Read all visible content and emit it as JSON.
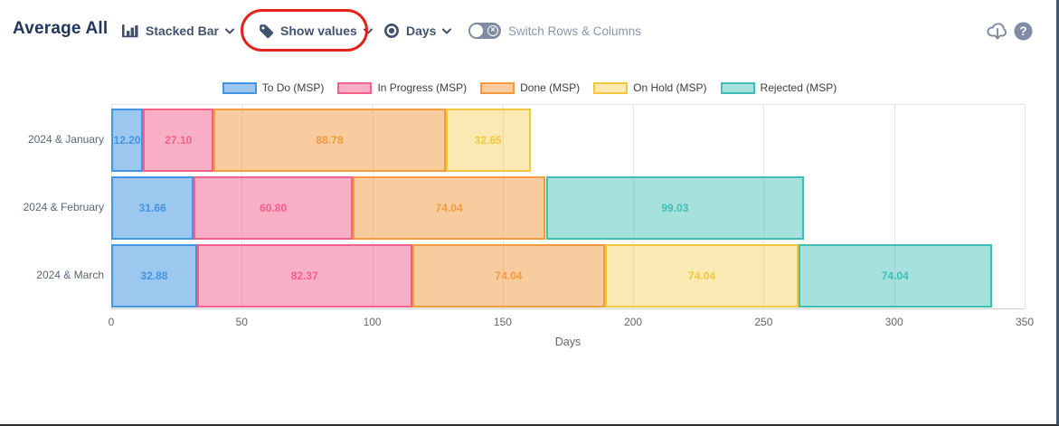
{
  "header": {
    "title": "Average All",
    "chart_type_label": "Stacked Bar",
    "show_values_label": "Show values",
    "unit_label": "Days",
    "switch_label": "Switch Rows & Columns"
  },
  "annotation": {
    "shape": "red-oval",
    "color": "#e32219",
    "around": "show-values-dropdown"
  },
  "chart_data": {
    "type": "bar",
    "orientation": "horizontal",
    "stacked": true,
    "title": "",
    "xlabel": "Days",
    "ylabel": "",
    "xlim": [
      0,
      350
    ],
    "xticks": [
      0,
      50,
      100,
      150,
      200,
      250,
      300,
      350
    ],
    "grid": true,
    "legend_position": "top",
    "value_labels": "shown, 2 decimals, colored per series",
    "categories": [
      "2024 & January",
      "2024 & February",
      "2024 & March"
    ],
    "series": [
      {
        "name": "To Do (MSP)",
        "color": "#4295e1",
        "fill": "#4295e185",
        "values": [
          12.2,
          31.66,
          32.88
        ]
      },
      {
        "name": "In Progress (MSP)",
        "color": "#f4608c",
        "fill": "#f4608c80",
        "values": [
          27.1,
          60.8,
          82.37
        ]
      },
      {
        "name": "Done (MSP)",
        "color": "#f49a3f",
        "fill": "#f49a3f80",
        "values": [
          88.78,
          74.04,
          74.04
        ]
      },
      {
        "name": "On Hold (MSP)",
        "color": "#f3c73e",
        "fill": "#f3c73e66",
        "values": [
          32.65,
          0,
          74.04
        ]
      },
      {
        "name": "Rejected (MSP)",
        "color": "#3fbeb5",
        "fill": "#3fbeb575",
        "values": [
          0,
          99.03,
          74.04
        ]
      }
    ]
  }
}
